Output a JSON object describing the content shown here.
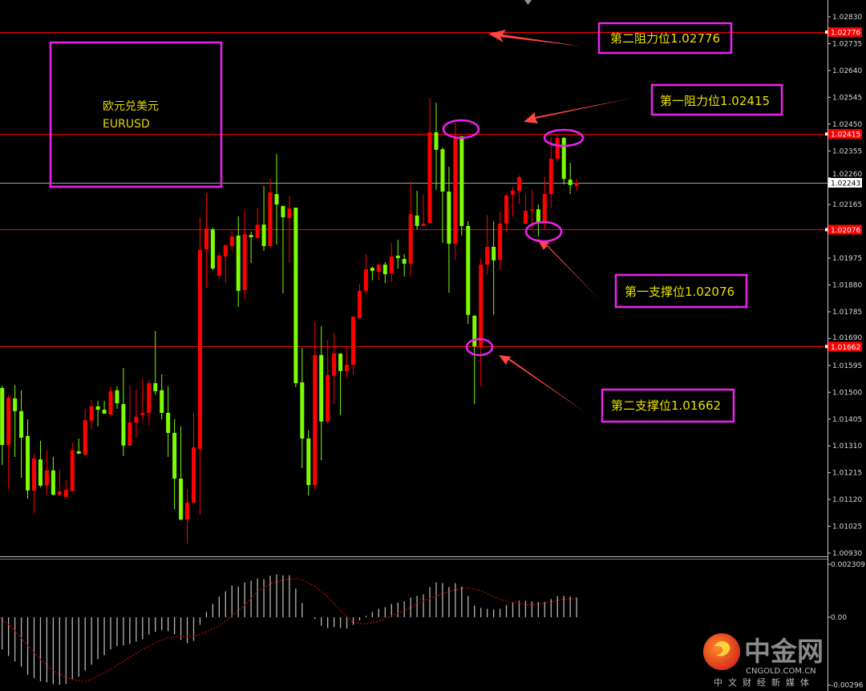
{
  "chart_data": [
    {
      "type": "candlestick",
      "symbol_label": [
        "欧元兑美元",
        "EURUSD"
      ],
      "ylim": [
        1.0093,
        1.0283
      ],
      "yticks": [
        "1.02830",
        "1.02735",
        "1.02640",
        "1.02545",
        "1.02450",
        "1.02355",
        "1.02260",
        "1.02165",
        "1.01975",
        "1.01880",
        "1.01785",
        "1.01690",
        "1.01595",
        "1.01500",
        "1.01405",
        "1.01310",
        "1.01215",
        "1.01120",
        "1.01025",
        "1.00930"
      ],
      "colors": {
        "up": "#ff0000",
        "down": "#7cfc00",
        "background": "#000000",
        "level_line": "#ff0000",
        "current_line": "#9aa4b0",
        "annotation_box": "#ee22ee",
        "annotation_text": "#e8e000",
        "arrow": "#ff4040"
      },
      "ohlc_order": [
        "open",
        "high",
        "low",
        "close"
      ],
      "candles": [
        [
          1.01515,
          1.01524,
          1.01242,
          1.01313
        ],
        [
          1.01313,
          1.0149,
          1.01157,
          1.01481
        ],
        [
          1.01478,
          1.01526,
          1.01271,
          1.01433
        ],
        [
          1.01433,
          1.01507,
          1.01197,
          1.01339
        ],
        [
          1.01345,
          1.01404,
          1.01123,
          1.01152
        ],
        [
          1.01152,
          1.01282,
          1.01072,
          1.01265
        ],
        [
          1.01262,
          1.01328,
          1.01163,
          1.01169
        ],
        [
          1.01169,
          1.01294,
          1.01137,
          1.01223
        ],
        [
          1.01223,
          1.01271,
          1.01134,
          1.01137
        ],
        [
          1.01137,
          1.01225,
          1.01132,
          1.01149
        ],
        [
          1.01129,
          1.01188,
          1.01129,
          1.01154
        ],
        [
          1.01149,
          1.01322,
          1.01149,
          1.01294
        ],
        [
          1.01291,
          1.01336,
          1.01282,
          1.01282
        ],
        [
          1.01279,
          1.01441,
          1.01274,
          1.01401
        ],
        [
          1.01399,
          1.01472,
          1.01367,
          1.0145
        ],
        [
          1.0145,
          1.0147,
          1.01379,
          1.01438
        ],
        [
          1.01438,
          1.0147,
          1.01424,
          1.01424
        ],
        [
          1.01421,
          1.01521,
          1.01413,
          1.01504
        ],
        [
          1.01507,
          1.01521,
          1.01441,
          1.01461
        ],
        [
          1.01458,
          1.01586,
          1.01274,
          1.01311
        ],
        [
          1.01311,
          1.01524,
          1.01311,
          1.01393
        ],
        [
          1.01393,
          1.01509,
          1.01339,
          1.01413
        ],
        [
          1.01419,
          1.01546,
          1.01399,
          1.01427
        ],
        [
          1.01427,
          1.01543,
          1.01382,
          1.01532
        ],
        [
          1.01532,
          1.01717,
          1.01492,
          1.01504
        ],
        [
          1.01507,
          1.01563,
          1.01404,
          1.01427
        ],
        [
          1.01427,
          1.01521,
          1.01271,
          1.01356
        ],
        [
          1.01356,
          1.01404,
          1.01086,
          1.01194
        ],
        [
          1.01194,
          1.01379,
          1.01046,
          1.01049
        ],
        [
          1.01049,
          1.01157,
          1.00964,
          1.01109
        ],
        [
          1.01109,
          1.01427,
          1.01106,
          1.01305
        ],
        [
          1.01299,
          1.0212,
          1.01066,
          1.02004
        ],
        [
          1.02006,
          1.02205,
          1.0187,
          1.0208
        ],
        [
          1.02077,
          1.02083,
          1.01933,
          1.01938
        ],
        [
          1.01913,
          1.01995,
          1.01901,
          1.01984
        ],
        [
          1.01981,
          1.02023,
          1.01887,
          1.02021
        ],
        [
          1.02018,
          1.02072,
          1.02004,
          1.02052
        ],
        [
          1.02055,
          1.02123,
          1.01802,
          1.01859
        ],
        [
          1.01862,
          1.02146,
          1.01833,
          1.0206
        ],
        [
          1.02057,
          1.02069,
          1.01958,
          1.02049
        ],
        [
          1.02046,
          1.02154,
          1.02046,
          1.02094
        ],
        [
          1.02094,
          1.02231,
          1.02001,
          1.02018
        ],
        [
          1.02018,
          1.02256,
          1.02015,
          1.02208
        ],
        [
          1.02202,
          1.02344,
          1.02023,
          1.02165
        ],
        [
          1.0216,
          1.0216,
          1.0185,
          1.0212
        ],
        [
          1.02117,
          1.02194,
          1.01958,
          1.02151
        ],
        [
          1.02154,
          1.02154,
          1.01518,
          1.01532
        ],
        [
          1.01535,
          1.01657,
          1.01231,
          1.01336
        ],
        [
          1.01336,
          1.01365,
          1.01134,
          1.01171
        ],
        [
          1.01171,
          1.01751,
          1.01154,
          1.01632
        ],
        [
          1.01632,
          1.01734,
          1.01259,
          1.01396
        ],
        [
          1.01396,
          1.01685,
          1.0139,
          1.01561
        ],
        [
          1.01558,
          1.01711,
          1.01458,
          1.01637
        ],
        [
          1.01637,
          1.01637,
          1.01419,
          1.01575
        ],
        [
          1.01575,
          1.01663,
          1.01549,
          1.01597
        ],
        [
          1.01597,
          1.01768,
          1.01561,
          1.01768
        ],
        [
          1.01762,
          1.01884,
          1.01762,
          1.01859
        ],
        [
          1.01859,
          1.01989,
          1.01847,
          1.01935
        ],
        [
          1.01941,
          1.01944,
          1.01896,
          1.0193
        ],
        [
          1.01927,
          1.01955,
          1.01898,
          1.01952
        ],
        [
          1.01952,
          1.01961,
          1.01887,
          1.01918
        ],
        [
          1.01921,
          1.02029,
          1.0189,
          1.01981
        ],
        [
          1.01984,
          1.0204,
          1.01938,
          1.01975
        ],
        [
          1.01972,
          1.01989,
          1.0191,
          1.01955
        ],
        [
          1.01955,
          1.02248,
          1.01913,
          1.02131
        ],
        [
          1.02126,
          1.02214,
          1.02077,
          1.02089
        ],
        [
          1.02089,
          1.022,
          1.02089,
          1.02097
        ],
        [
          1.021,
          1.02543,
          1.021,
          1.02421
        ],
        [
          1.02421,
          1.02526,
          1.02217,
          1.02359
        ],
        [
          1.02361,
          1.02367,
          1.02029,
          1.02211
        ],
        [
          1.02211,
          1.02299,
          1.01853,
          1.02026
        ],
        [
          1.02026,
          1.02455,
          1.01969,
          1.02401
        ],
        [
          1.02407,
          1.02407,
          1.02055,
          1.02089
        ],
        [
          1.02089,
          1.02106,
          1.01742,
          1.01774
        ],
        [
          1.01771,
          1.01774,
          1.01458,
          1.01663
        ],
        [
          1.01663,
          1.01975,
          1.01521,
          1.01952
        ],
        [
          1.01952,
          1.02128,
          1.01918,
          1.02015
        ],
        [
          1.02015,
          1.02106,
          1.01774,
          1.01967
        ],
        [
          1.01969,
          1.0214,
          1.01933,
          1.02097
        ],
        [
          1.02097,
          1.02202,
          1.02066,
          1.02197
        ],
        [
          1.022,
          1.02228,
          1.02123,
          1.02214
        ],
        [
          1.02214,
          1.02268,
          1.02168,
          1.02262
        ],
        [
          1.02097,
          1.02202,
          1.02097,
          1.02143
        ],
        [
          1.02146,
          1.02217,
          1.02075,
          1.02148
        ],
        [
          1.02148,
          1.02165,
          1.02052,
          1.021
        ],
        [
          1.021,
          1.02262,
          1.02075,
          1.02202
        ],
        [
          1.02202,
          1.02404,
          1.02154,
          1.02327
        ],
        [
          1.02327,
          1.02412,
          1.02316,
          1.02401
        ],
        [
          1.02401,
          1.02404,
          1.02236,
          1.02256
        ],
        [
          1.02253,
          1.02313,
          1.02202,
          1.02234
        ],
        [
          1.02231,
          1.02256,
          1.02214,
          1.02242
        ]
      ],
      "current_price": "1.02243",
      "levels": [
        {
          "price": 1.02776,
          "label": "1.02776",
          "annotation": "第二阻力位1.02776"
        },
        {
          "price": 1.02415,
          "label": "1.02415",
          "annotation": "第一阻力位1.02415"
        },
        {
          "price": 1.02076,
          "label": "1.02076",
          "annotation": "第一支撑位1.02076"
        },
        {
          "price": 1.01662,
          "label": "1.01662",
          "annotation": "第二支撑位1.01662"
        }
      ]
    },
    {
      "type": "bar+line",
      "indicator": "macd",
      "ylim": [
        -0.00296,
        0.002309
      ],
      "yticks": [
        "0.002309",
        "0.00",
        "-0.00296"
      ],
      "colors": {
        "histogram": "#b4b4b4",
        "signal": "#c00000"
      },
      "histogram": [
        -0.0014,
        -0.00169,
        -0.00193,
        -0.00216,
        -0.00251,
        -0.00265,
        -0.0028,
        -0.00284,
        -0.00292,
        -0.00294,
        -0.00291,
        -0.00272,
        -0.00259,
        -0.00233,
        -0.00207,
        -0.00183,
        -0.00166,
        -0.0014,
        -0.00126,
        -0.00123,
        -0.00117,
        -0.00106,
        -0.00095,
        -0.00076,
        -0.00064,
        -0.00057,
        -0.00061,
        -0.00074,
        -0.00099,
        -0.00113,
        -0.00103,
        -0.00033,
        0.00023,
        0.00058,
        0.0009,
        0.00113,
        0.00139,
        0.00134,
        0.00152,
        0.0016,
        0.00169,
        0.00166,
        0.00181,
        0.00187,
        0.00183,
        0.00183,
        0.00125,
        0.00062,
        0.0,
        -8e-05,
        -0.00037,
        -0.00047,
        -0.00043,
        -0.00047,
        -0.0005,
        -0.00033,
        -0.00014,
        6e-05,
        0.00023,
        0.00037,
        0.00044,
        0.00058,
        0.00064,
        0.00069,
        0.00086,
        0.00093,
        0.001,
        0.00132,
        0.00152,
        0.00149,
        0.00132,
        0.00149,
        0.00134,
        0.00093,
        0.00051,
        0.00041,
        0.00037,
        0.00034,
        0.00037,
        0.00053,
        0.00064,
        0.00072,
        0.00072,
        0.00069,
        0.00067,
        0.00067,
        0.00079,
        0.00093,
        0.00093,
        0.0009,
        0.00086
      ],
      "signal_bar_value": [
        [
          1,
          -8e-05
        ],
        [
          3,
          -0.00058
        ],
        [
          5,
          -0.00123
        ],
        [
          7,
          -0.00184
        ],
        [
          9,
          -0.00233
        ],
        [
          11,
          -0.00263
        ],
        [
          13,
          -0.00278
        ],
        [
          14,
          -0.00278
        ],
        [
          15,
          -0.0027
        ],
        [
          17,
          -0.00242
        ],
        [
          19,
          -0.0021
        ],
        [
          21,
          -0.00175
        ],
        [
          23,
          -0.0014
        ],
        [
          25,
          -0.00111
        ],
        [
          27,
          -0.0009
        ],
        [
          29,
          -0.00084
        ],
        [
          31,
          -0.00084
        ],
        [
          33,
          -0.00064
        ],
        [
          35,
          -0.00039
        ],
        [
          37,
          6e-05
        ],
        [
          39,
          0.00053
        ],
        [
          41,
          0.00111
        ],
        [
          43,
          0.00146
        ],
        [
          45,
          0.00163
        ],
        [
          47,
          0.00169
        ],
        [
          48,
          0.00163
        ],
        [
          50,
          0.00134
        ],
        [
          52,
          0.00088
        ],
        [
          54,
          0.00029
        ],
        [
          56,
          -0.00023
        ],
        [
          58,
          -0.00029
        ],
        [
          60,
          -0.00018
        ],
        [
          62,
          6e-05
        ],
        [
          64,
          0.00029
        ],
        [
          66,
          0.00058
        ],
        [
          68,
          0.00082
        ],
        [
          70,
          0.00103
        ],
        [
          72,
          0.0012
        ],
        [
          74,
          0.00128
        ],
        [
          76,
          0.00117
        ],
        [
          78,
          0.0009
        ],
        [
          80,
          0.0007
        ],
        [
          82,
          0.00062
        ],
        [
          83,
          0.00053
        ],
        [
          85,
          0.00058
        ],
        [
          87,
          0.00067
        ],
        [
          89,
          0.00079
        ],
        [
          91,
          0.00082
        ]
      ]
    }
  ],
  "labels": {
    "symbol_cn": "欧元兑美元",
    "symbol_en": "EURUSD",
    "r2": "第二阻力位1.02776",
    "r1": "第一阻力位1.02415",
    "s1": "第一支撑位1.02076",
    "s2": "第二支撑位1.01662"
  },
  "watermark": {
    "name": "中金网",
    "domain": "CNGOLD.COM.CN",
    "slogan": "中文财经新媒体"
  }
}
